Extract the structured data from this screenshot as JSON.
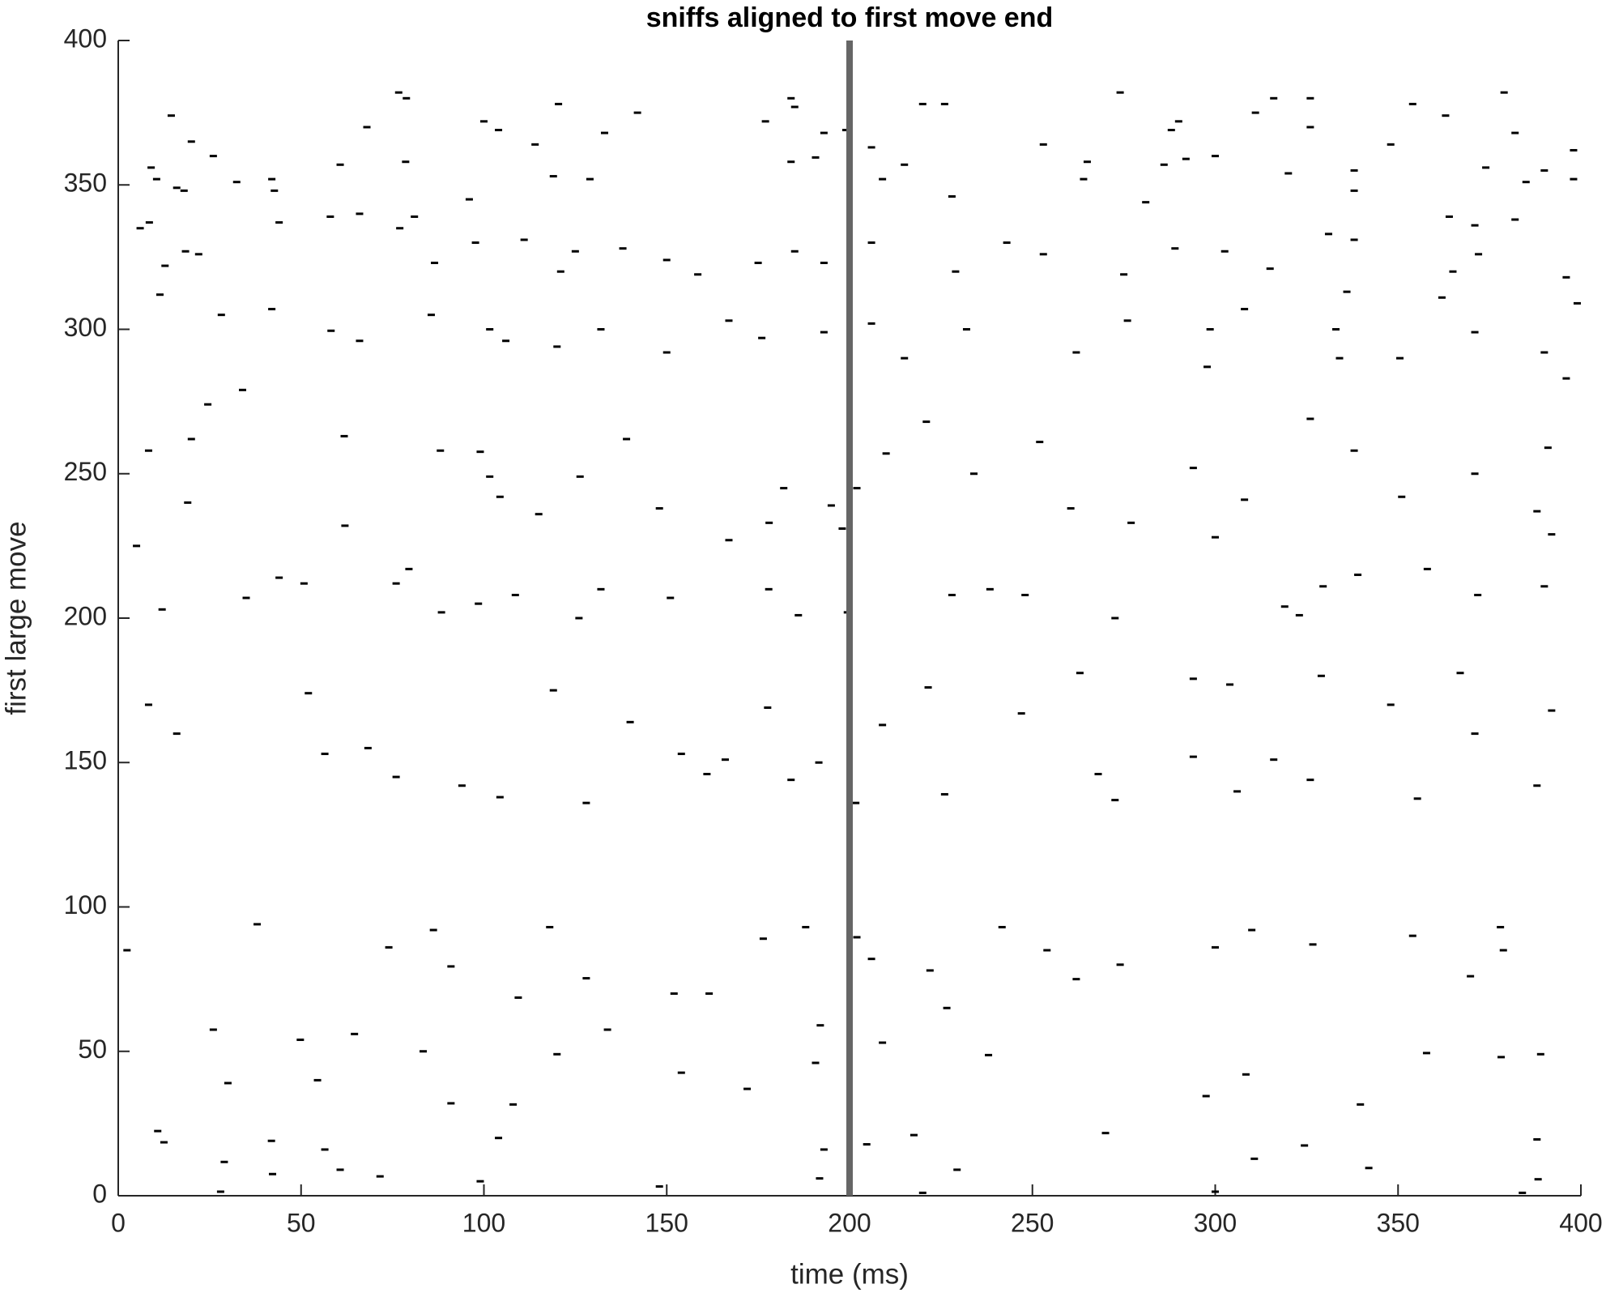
{
  "chart_data": {
    "type": "scatter",
    "title": "sniffs aligned to first move end",
    "xlabel": "time (ms)",
    "ylabel": "first large move",
    "xlim": [
      0,
      400
    ],
    "ylim": [
      0,
      400
    ],
    "xticks": [
      0,
      50,
      100,
      150,
      200,
      250,
      300,
      350,
      400
    ],
    "yticks": [
      0,
      50,
      100,
      150,
      200,
      250,
      300,
      350,
      400
    ],
    "color": "#000000",
    "alignment_line": {
      "x": 200,
      "color": "#666666"
    },
    "x": [
      75.7,
      77.8,
      273,
      378,
      119.4,
      183,
      184,
      219,
      225,
      315,
      325,
      353,
      13.5,
      67,
      99,
      103,
      289,
      287,
      310,
      325,
      362,
      381,
      19,
      25,
      8,
      9.5,
      5,
      7.5,
      15,
      17,
      31.4,
      41,
      41.7,
      59.7,
      77.6,
      95,
      113,
      128,
      118,
      132,
      141,
      176,
      192,
      183,
      189.7,
      198,
      205,
      214,
      208,
      227,
      252,
      264,
      263,
      299,
      291,
      285,
      319,
      337,
      347,
      373,
      397,
      389,
      397,
      384,
      337,
      280,
      363,
      370,
      381,
      11.8,
      17.4,
      21,
      43,
      57,
      65,
      76,
      80,
      85.5,
      96.7,
      110,
      120,
      124,
      137,
      149,
      157.5,
      174,
      184,
      192,
      205,
      228,
      242,
      252,
      274,
      288,
      301.6,
      314,
      330,
      337,
      364,
      371,
      395,
      361,
      398,
      335,
      307,
      297.6,
      332,
      370,
      10.4,
      27.2,
      41,
      57.2,
      65,
      84.6,
      105,
      100.6,
      119,
      131,
      149,
      166,
      175,
      192,
      205,
      214,
      231,
      261,
      275,
      296.8,
      333,
      349.5,
      389,
      395,
      7.3,
      19,
      23.5,
      33,
      60.8,
      87.1,
      98,
      100.6,
      103.4,
      125.3,
      114,
      138,
      147,
      166,
      177,
      181,
      194,
      197,
      201,
      209,
      220,
      233,
      251,
      259.5,
      276,
      293,
      299,
      307,
      325,
      337,
      350,
      370,
      387,
      390,
      391,
      4,
      18,
      34,
      11,
      43,
      49.8,
      61,
      75,
      78.5,
      87.4,
      97.5,
      107.6,
      125,
      131,
      150,
      176.9,
      185,
      198.4,
      227,
      237.4,
      247,
      271.6,
      318,
      322,
      328.5,
      338,
      357,
      370.8,
      389,
      51,
      7.3,
      15,
      55.5,
      67.3,
      75,
      93,
      103.4,
      118,
      127,
      139,
      153,
      160,
      165,
      176.6,
      183,
      190.6,
      200.7,
      208,
      220.5,
      225,
      246,
      262,
      267,
      271.6,
      293,
      303,
      293,
      305,
      315,
      325,
      328,
      347,
      354.3,
      366,
      370,
      387,
      391,
      1.4,
      37,
      73,
      85.2,
      117,
      90,
      108.4,
      127,
      151,
      160.6,
      175.4,
      187,
      201,
      205,
      221,
      240.7,
      253,
      261,
      273,
      299,
      309,
      325.7,
      353,
      368.8,
      377,
      377.8,
      25,
      29,
      48.8,
      63.6,
      53.5,
      82.4,
      90,
      107,
      119,
      132.8,
      153,
      171,
      191,
      189.7,
      208,
      225.6,
      237,
      296.5,
      307.4,
      338.7,
      356.8,
      377.2,
      388,
      28,
      40.9,
      41.2,
      55.5,
      59.7,
      70.6,
      98,
      147,
      103,
      192,
      190.8,
      203.7,
      216.6,
      228.4,
      269,
      299,
      309.7,
      323.4,
      341,
      383,
      387,
      387.3,
      219,
      27,
      9.8,
      11.5
    ],
    "values": [
      382,
      380,
      382,
      382,
      378,
      380,
      377,
      378,
      378,
      380,
      380,
      378,
      374,
      370,
      372,
      369,
      372,
      369,
      375,
      370,
      374,
      368,
      365,
      360,
      356,
      352,
      335,
      337,
      349,
      348,
      351,
      352,
      348,
      357,
      358,
      345,
      364,
      352,
      353,
      368,
      375,
      372,
      368,
      358,
      359.5,
      369,
      363,
      357,
      352,
      346,
      364,
      358,
      352,
      360,
      359,
      357,
      354,
      355,
      364,
      356,
      362,
      355,
      352,
      351,
      348,
      344,
      339,
      336,
      338,
      322,
      327,
      326,
      337,
      339,
      340,
      335,
      339,
      323,
      330,
      331,
      320,
      327,
      328,
      324,
      319,
      323,
      327,
      323,
      330,
      320,
      330,
      326,
      319,
      328,
      327,
      321,
      333,
      331,
      320,
      326,
      318,
      311,
      309,
      313,
      307,
      300,
      300,
      299,
      312,
      305,
      307,
      299.5,
      296,
      305,
      296,
      300,
      294,
      300,
      292,
      303,
      297,
      299,
      302,
      290,
      300,
      292,
      303,
      287,
      290,
      290,
      292,
      283,
      258,
      262,
      274,
      279,
      263,
      258,
      257.6,
      249,
      242,
      249,
      236,
      262,
      238,
      227,
      233,
      245,
      239,
      231,
      245,
      257,
      268,
      250,
      261,
      238,
      233,
      252,
      228,
      241,
      269,
      258,
      242,
      250,
      237,
      259,
      229,
      225,
      240,
      207,
      203,
      214,
      212,
      232,
      212,
      217,
      202,
      205,
      208,
      200,
      210,
      207,
      210,
      201,
      202,
      208,
      210,
      208,
      200,
      204,
      201,
      211,
      215,
      217,
      208,
      211,
      174,
      170,
      160,
      153,
      155,
      145,
      142,
      138,
      175,
      136,
      164,
      153,
      146,
      151,
      169,
      144,
      150,
      136,
      163,
      176,
      139,
      167,
      181,
      146,
      137,
      179,
      177,
      152,
      140,
      151,
      144,
      180,
      170,
      137.5,
      181,
      160,
      142,
      168,
      85,
      94,
      86,
      92,
      93,
      79.4,
      68.6,
      75.3,
      70,
      70,
      89,
      93,
      89.5,
      82,
      78,
      93,
      85,
      75,
      80,
      86,
      92,
      87,
      90,
      76,
      93,
      85,
      57.5,
      39,
      54,
      56,
      40,
      50,
      32,
      31.6,
      49,
      57.5,
      42.6,
      37,
      59,
      46,
      53,
      65,
      48.7,
      34.5,
      42,
      31.6,
      49.4,
      48,
      49,
      11.7,
      19,
      7.5,
      16,
      9,
      6.7,
      5,
      3.2,
      20,
      16,
      6,
      17.8,
      21,
      9,
      21.7,
      1.4,
      12.8,
      17.4,
      9.6,
      1,
      19.5,
      5.7,
      1,
      1.4,
      22.4,
      18.5
    ]
  }
}
